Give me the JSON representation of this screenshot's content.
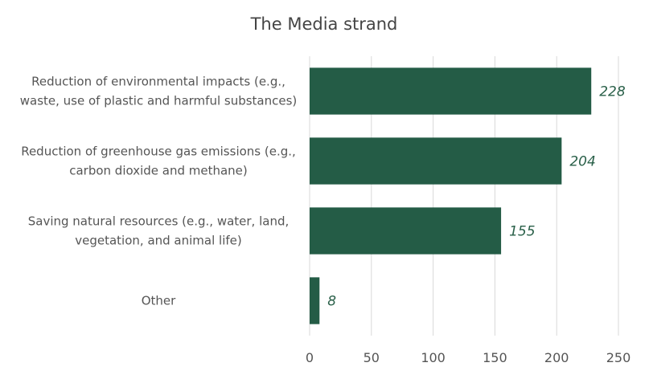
{
  "chart_data": {
    "type": "bar",
    "orientation": "horizontal",
    "title": "The Media strand",
    "categories": [
      [
        "Reduction of environmental impacts (e.g.,",
        "waste, use of plastic and harmful substances)"
      ],
      [
        "Reduction of greenhouse gas emissions (e.g.,",
        "carbon dioxide and methane)"
      ],
      [
        "Saving natural resources (e.g., water, land,",
        "vegetation, and animal life)"
      ],
      [
        "Other"
      ]
    ],
    "values": [
      228,
      204,
      155,
      8
    ],
    "xlim": [
      0,
      250
    ],
    "xticks": [
      0,
      50,
      100,
      150,
      200,
      250
    ],
    "grid": "vertical",
    "data_labels": true,
    "bar_color": "#245c46",
    "label_color": "#2a6049"
  }
}
